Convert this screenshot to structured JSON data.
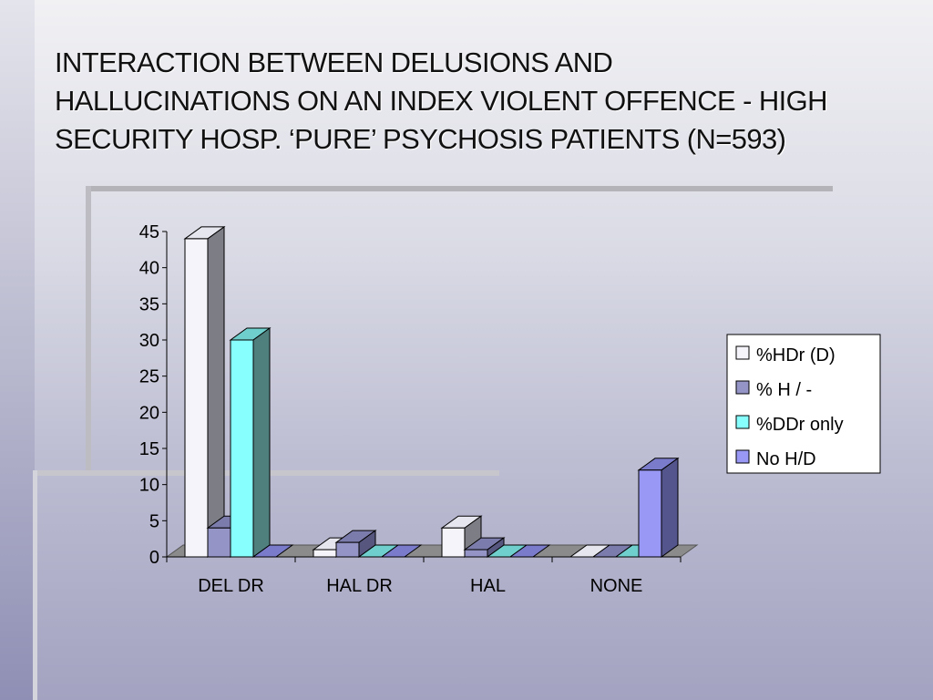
{
  "slide": {
    "title_lines": [
      "INTERACTION BETWEEN DELUSIONS AND",
      "HALLUCINATIONS ON AN INDEX VIOLENT OFFENCE - HIGH",
      "SECURITY HOSP. ‘PURE’ PSYCHOSIS PATIENTS      (N=593)"
    ]
  },
  "chart_data": {
    "type": "bar",
    "title": "",
    "xlabel": "",
    "ylabel": "",
    "ylim": [
      0,
      45
    ],
    "yticks": [
      0,
      5,
      10,
      15,
      20,
      25,
      30,
      35,
      40,
      45
    ],
    "categories": [
      "DEL DR",
      "HAL DR",
      "HAL",
      "NONE"
    ],
    "legend_position": "right",
    "series": [
      {
        "name": "%HDr (D)",
        "values": [
          44,
          1,
          4,
          0
        ],
        "color": "#f4f4fa",
        "side": "#7d7d86",
        "top": "#e6e6ee"
      },
      {
        "name": "% H / -",
        "values": [
          4,
          2,
          1,
          0
        ],
        "color": "#9494c6",
        "side": "#56567e",
        "top": "#7c7cac"
      },
      {
        "name": "%DDr only",
        "values": [
          30,
          0,
          0,
          0
        ],
        "color": "#88ffff",
        "side": "#50807e",
        "top": "#6fcfcc"
      },
      {
        "name": "No H/D",
        "values": [
          0,
          0,
          0,
          12
        ],
        "color": "#9999f5",
        "side": "#55558e",
        "top": "#7b7bcc"
      }
    ]
  }
}
